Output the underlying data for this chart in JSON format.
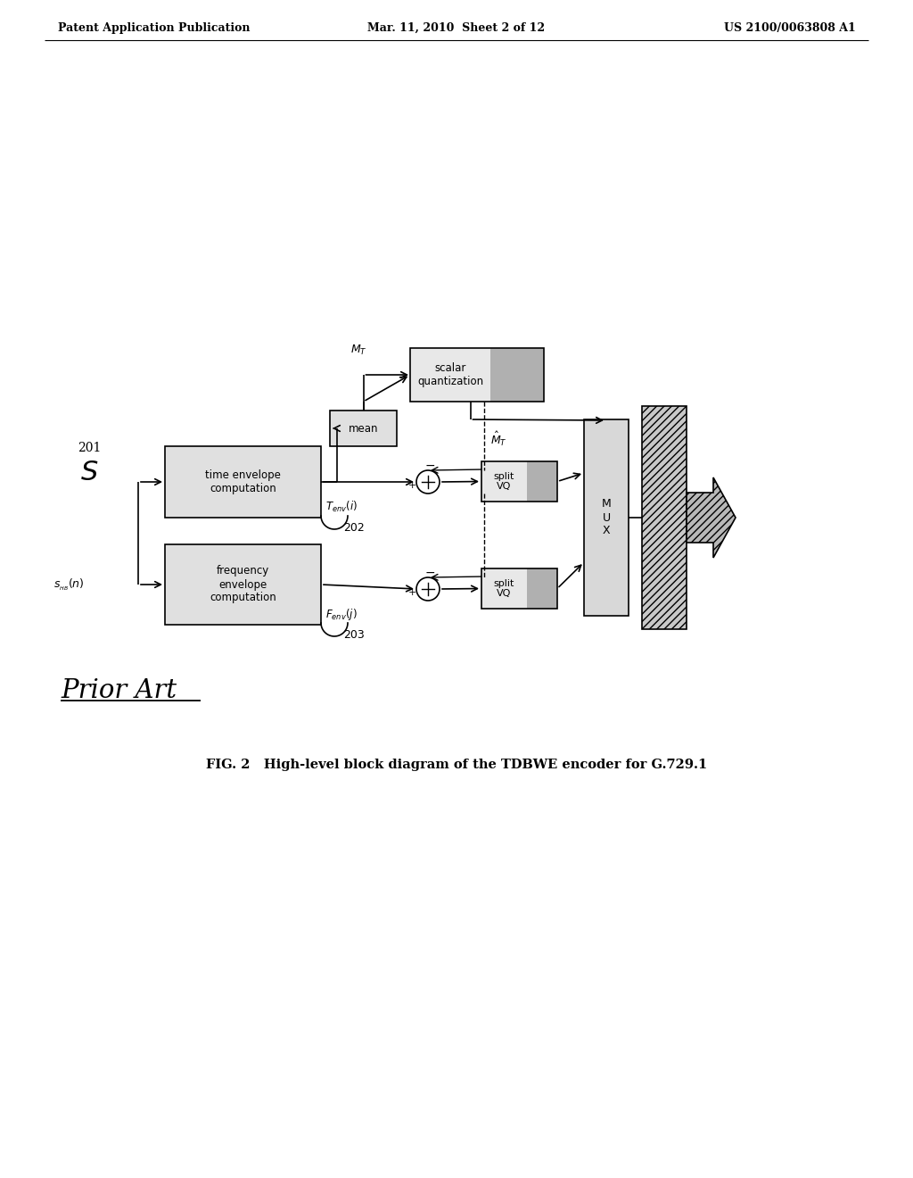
{
  "header_left": "Patent Application Publication",
  "header_mid": "Mar. 11, 2010  Sheet 2 of 12",
  "header_right": "US 2100/0063808 A1",
  "prior_art": "Prior Art",
  "caption": "FIG. 2   High-level block diagram of the TDBWE encoder for G.729.1",
  "background": "#ffffff"
}
